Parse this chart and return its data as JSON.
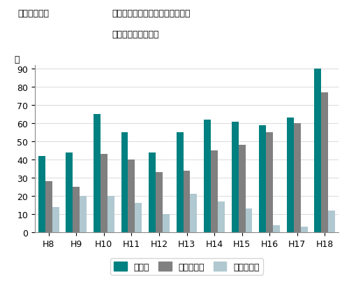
{
  "categories": [
    "H8",
    "H9",
    "H10",
    "H11",
    "H12",
    "H13",
    "H14",
    "H15",
    "H16",
    "H17",
    "H18"
  ],
  "total": [
    42,
    44,
    65,
    55,
    44,
    55,
    62,
    61,
    59,
    63,
    90
  ],
  "general": [
    28,
    25,
    43,
    40,
    33,
    34,
    45,
    48,
    55,
    60,
    77
  ],
  "industry": [
    14,
    20,
    20,
    16,
    10,
    21,
    17,
    13,
    4,
    3,
    12
  ],
  "total_color": "#008080",
  "general_color": "#808080",
  "industry_color": "#b0c8d0",
  "title_prefix": "図１－１－７",
  "title_line1": "廃棄物の不法投棄・不適正処理に",
  "title_line2": "係る検挙件数の推移",
  "ylabel": "件",
  "ylim": [
    0,
    92
  ],
  "yticks": [
    0,
    10,
    20,
    30,
    40,
    50,
    60,
    70,
    80,
    90
  ],
  "legend_total": "総件数",
  "legend_general": "一般廃棄物",
  "legend_industry": "産業廃棄物",
  "bar_width": 0.25
}
